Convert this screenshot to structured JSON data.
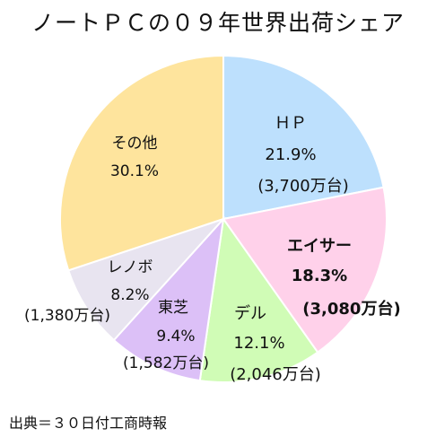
{
  "chart_data": {
    "type": "pie",
    "title": "ノートＰＣの０９年世界出荷シェア",
    "source": "出典＝３０日付工商時報",
    "slices": [
      {
        "name": "ＨＰ",
        "percent": 21.9,
        "percent_label": "21.9%",
        "units_label": "(3,700万台)",
        "color": "#bde0fd",
        "bold": false
      },
      {
        "name": "エイサー",
        "percent": 18.3,
        "percent_label": "18.3%",
        "units_label": "(3,080万台)",
        "color": "#ffd1ea",
        "bold": true
      },
      {
        "name": "デル",
        "percent": 12.1,
        "percent_label": "12.1%",
        "units_label": "(2,046万台)",
        "color": "#d0fcb6",
        "bold": false
      },
      {
        "name": "東芝",
        "percent": 9.4,
        "percent_label": "9.4%",
        "units_label": "(1,582万台)",
        "color": "#dcc0f7",
        "bold": false
      },
      {
        "name": "レノボ",
        "percent": 8.2,
        "percent_label": "8.2%",
        "units_label": "(1,380万台)",
        "color": "#e8e4f0",
        "bold": false
      },
      {
        "name": "その他",
        "percent": 30.1,
        "percent_label": "30.1%",
        "units_label": "",
        "color": "#fee49d",
        "bold": false
      }
    ]
  }
}
